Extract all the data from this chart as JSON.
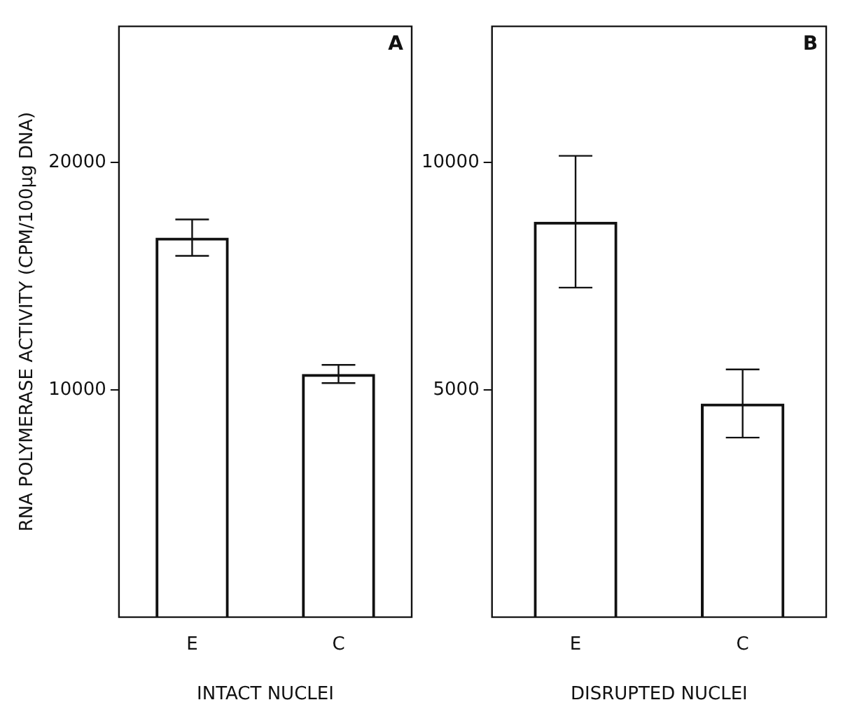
{
  "chart_data": [
    {
      "type": "bar",
      "categories": [
        "E",
        "C"
      ],
      "values": [
        16700,
        10700
      ],
      "errors": [
        800,
        400
      ],
      "color": "#111111",
      "ylim": [
        0,
        26000
      ],
      "yticks": [
        10000,
        20000
      ],
      "xlabel": "INTACT NUCLEI",
      "ylabel": "RNA POLYMERASE ACTIVITY (CPM/100μg DNA)",
      "annotations": [
        "A"
      ],
      "grid": false,
      "legend": false
    },
    {
      "type": "bar",
      "categories": [
        "E",
        "C"
      ],
      "values": [
        8700,
        4700
      ],
      "errors": [
        1450,
        750
      ],
      "color": "#111111",
      "ylim": [
        0,
        13000
      ],
      "yticks": [
        5000,
        10000
      ],
      "xlabel": "DISRUPTED NUCLEI",
      "annotations": [
        "B"
      ],
      "grid": false,
      "legend": false
    }
  ]
}
